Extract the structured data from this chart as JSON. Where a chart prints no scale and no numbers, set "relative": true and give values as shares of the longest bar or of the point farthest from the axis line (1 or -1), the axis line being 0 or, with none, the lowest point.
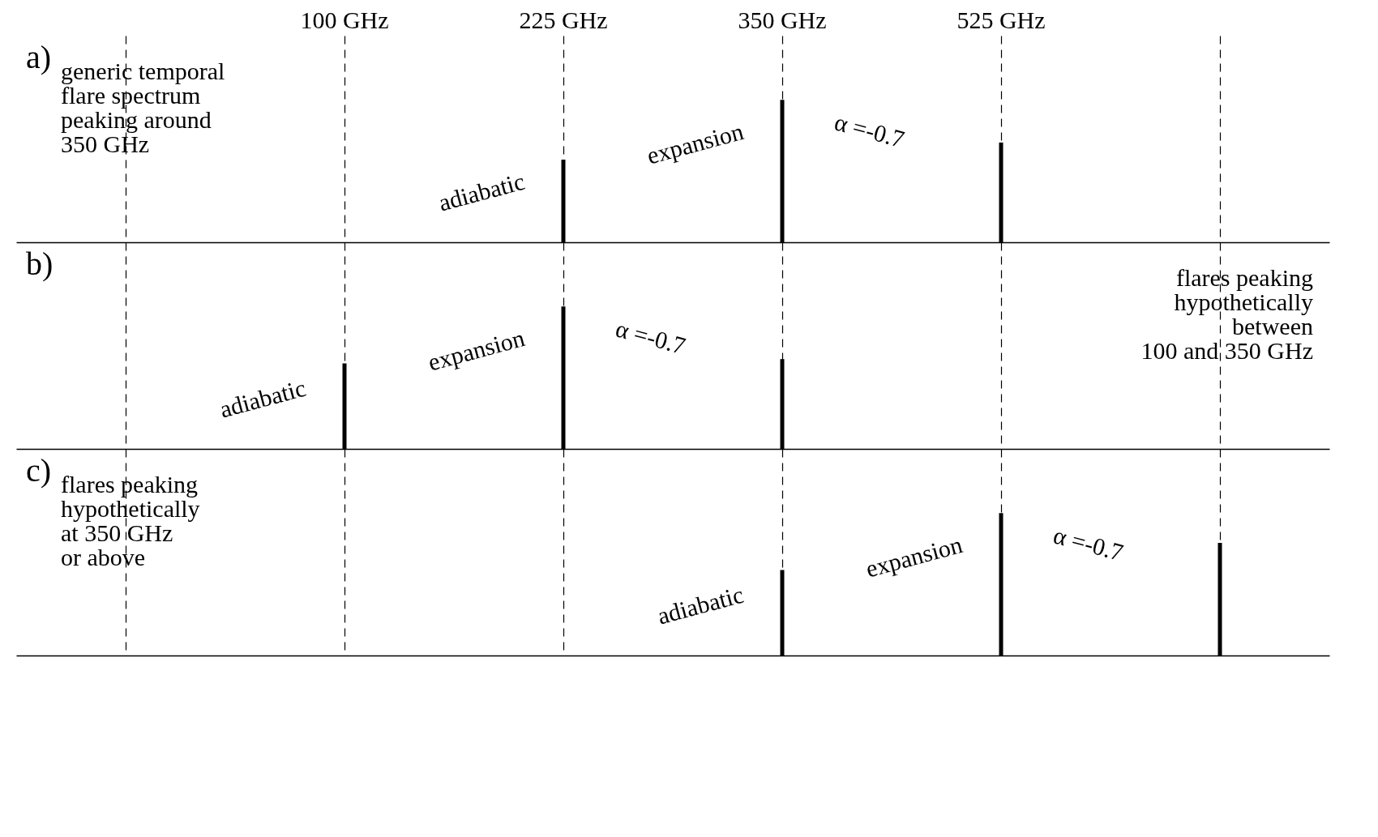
{
  "chart_data": [
    {
      "type": "bar",
      "categories": [
        null,
        "100 GHz",
        "225 GHz",
        "350 GHz",
        "525 GHz",
        null
      ],
      "values": [
        null,
        null,
        0.58,
        1,
        0.7,
        null
      ],
      "relative": true,
      "color": "#000000",
      "grid": "x",
      "annotations": [
        "a)",
        "generic temporal\nflare spectrum\npeaking around\n350 GHz",
        {
          "text": "adiabatic",
          "x": "225 GHz",
          "y": 0.5
        },
        {
          "text": "expansion",
          "x": "350 GHz",
          "y": 0.85
        },
        "α =-0.7"
      ]
    },
    {
      "type": "bar",
      "categories": [
        null,
        "100 GHz",
        "225 GHz",
        "350 GHz",
        "525 GHz",
        null
      ],
      "values": [
        null,
        0.6,
        1,
        0.63,
        null,
        null
      ],
      "relative": true,
      "color": "#000000",
      "grid": "x",
      "tick_labels": false,
      "annotations": [
        "b)",
        "flares peaking\nhypothetically\nbetween\n100 and 350 GHz",
        {
          "text": "adiabatic",
          "x": "100 GHz",
          "y": 0.5
        },
        {
          "text": "expansion",
          "x": "225 GHz",
          "y": 0.85
        },
        "α =-0.7"
      ]
    },
    {
      "type": "bar",
      "categories": [
        null,
        "100 GHz",
        "225 GHz",
        "350 GHz",
        "525 GHz",
        null
      ],
      "values": [
        null,
        null,
        null,
        0.6,
        1,
        0.79
      ],
      "relative": true,
      "color": "#000000",
      "grid": "x",
      "tick_labels": false,
      "annotations": [
        "c)",
        "flares peaking\nhypothetically\nat 350 GHz\nor above",
        {
          "text": "adiabatic",
          "x": "350 GHz",
          "y": 0.5
        },
        {
          "text": "expansion",
          "x": "525 GHz",
          "y": 0.85
        },
        "α =-0.7"
      ]
    }
  ]
}
